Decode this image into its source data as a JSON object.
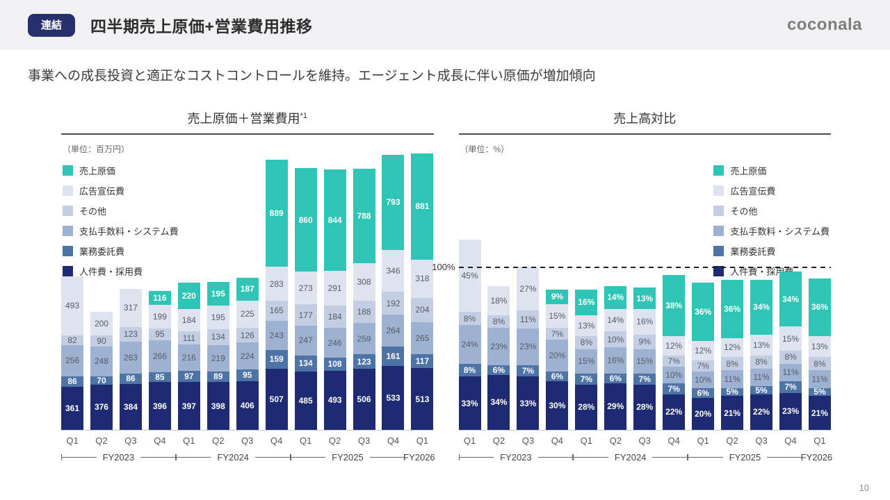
{
  "header": {
    "badge_label": "連結",
    "title": "四半期売上原価+営業費用推移",
    "logo_text": "coconala"
  },
  "subtitle": "事業への成長投資と適正なコストコントロールを維持。エージェント成長に伴い原価が増加傾向",
  "footer": {
    "page_number": "10"
  },
  "chart_data": [
    {
      "id": "cost",
      "type": "bar",
      "stacked": true,
      "title": "売上原価＋営業費用",
      "title_sup": "*1",
      "unit_label": "（単位：百万円）",
      "legend_pos": "top-left",
      "axis_max": 2310,
      "categories": [
        "Q1",
        "Q2",
        "Q3",
        "Q4",
        "Q1",
        "Q2",
        "Q3",
        "Q4",
        "Q1",
        "Q2",
        "Q3",
        "Q4",
        "Q1"
      ],
      "fiscal_years": [
        {
          "label": "FY2023",
          "span": 4
        },
        {
          "label": "FY2024",
          "span": 4
        },
        {
          "label": "FY2025",
          "span": 4
        },
        {
          "label": "FY2026",
          "span": 1
        }
      ],
      "series": [
        {
          "name": "売上原価",
          "color": "#2ec5b6",
          "label": "light",
          "values": [
            null,
            null,
            null,
            116,
            220,
            195,
            187,
            889,
            860,
            844,
            788,
            793,
            881
          ]
        },
        {
          "name": "広告宣伝費",
          "color": "#dde4ef",
          "label": "dark",
          "values": [
            493,
            200,
            317,
            199,
            184,
            195,
            225,
            283,
            273,
            291,
            308,
            346,
            318
          ]
        },
        {
          "name": "その他",
          "color": "#c3cee4",
          "label": "dark",
          "values": [
            82,
            90,
            123,
            95,
            111,
            134,
            126,
            165,
            177,
            184,
            188,
            192,
            204
          ]
        },
        {
          "name": "支払手数料・システム費",
          "color": "#9db1d3",
          "label": "dark",
          "values": [
            256,
            248,
            263,
            266,
            216,
            219,
            224,
            243,
            247,
            246,
            259,
            264,
            265
          ]
        },
        {
          "name": "業務委託費",
          "color": "#4d73a7",
          "label": "light",
          "values": [
            86,
            70,
            86,
            85,
            97,
            89,
            95,
            159,
            134,
            108,
            123,
            161,
            117
          ]
        },
        {
          "name": "人件費・採用費",
          "color": "#1e2b72",
          "label": "light",
          "values": [
            361,
            376,
            384,
            396,
            397,
            398,
            406,
            507,
            485,
            493,
            506,
            533,
            513
          ]
        }
      ]
    },
    {
      "id": "ratio",
      "type": "bar",
      "stacked": true,
      "title": "売上高対比",
      "title_sup": "",
      "unit_label": "（単位：%）",
      "value_suffix": "%",
      "legend_pos": "top-right",
      "axis_max": 172,
      "reference_line": {
        "value": 100,
        "label": "100%"
      },
      "categories": [
        "Q1",
        "Q2",
        "Q3",
        "Q4",
        "Q1",
        "Q2",
        "Q3",
        "Q4",
        "Q1",
        "Q2",
        "Q3",
        "Q4",
        "Q1"
      ],
      "fiscal_years": [
        {
          "label": "FY2023",
          "span": 4
        },
        {
          "label": "FY2024",
          "span": 4
        },
        {
          "label": "FY2025",
          "span": 4
        },
        {
          "label": "FY2026",
          "span": 1
        }
      ],
      "series": [
        {
          "name": "売上原価",
          "color": "#2ec5b6",
          "label": "light",
          "values": [
            null,
            null,
            null,
            9,
            16,
            14,
            13,
            38,
            36,
            36,
            34,
            34,
            36
          ]
        },
        {
          "name": "広告宣伝費",
          "color": "#dde4ef",
          "label": "dark",
          "values": [
            45,
            18,
            27,
            15,
            13,
            14,
            16,
            12,
            12,
            12,
            13,
            15,
            13
          ]
        },
        {
          "name": "その他",
          "color": "#c3cee4",
          "label": "dark",
          "values": [
            8,
            8,
            11,
            7,
            8,
            10,
            9,
            7,
            7,
            8,
            8,
            8,
            8
          ]
        },
        {
          "name": "支払手数料・システム費",
          "color": "#9db1d3",
          "label": "dark",
          "values": [
            24,
            23,
            23,
            20,
            15,
            16,
            15,
            10,
            10,
            11,
            11,
            11,
            11
          ]
        },
        {
          "name": "業務委託費",
          "color": "#4d73a7",
          "label": "light",
          "values": [
            8,
            6,
            7,
            6,
            7,
            6,
            7,
            7,
            6,
            5,
            5,
            7,
            5
          ]
        },
        {
          "name": "人件費・採用費",
          "color": "#1e2b72",
          "label": "light",
          "values": [
            33,
            34,
            33,
            30,
            28,
            29,
            28,
            22,
            20,
            21,
            22,
            23,
            21
          ]
        }
      ]
    }
  ]
}
